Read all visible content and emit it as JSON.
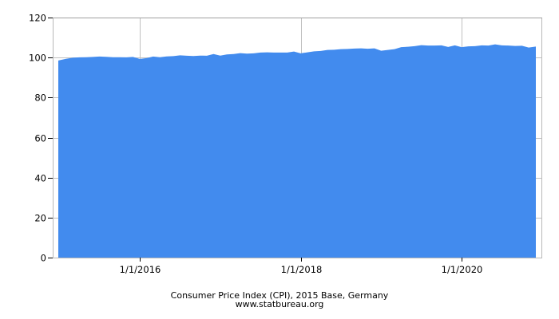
{
  "chart_data": {
    "type": "area",
    "title": "Consumer Price Index (CPI), 2015 Base, Germany",
    "subtitle": "www.statbureau.org",
    "xlabel": "",
    "ylabel": "",
    "ylim": [
      0,
      120
    ],
    "yticks": [
      0,
      20,
      40,
      60,
      80,
      100,
      120
    ],
    "xticks": [
      "1/1/2016",
      "1/1/2018",
      "1/1/2020"
    ],
    "grid": true,
    "legend": null,
    "color": "#428BEE",
    "x_start": "2015-01",
    "x_end": "2020-12",
    "frequency": "monthly",
    "series": [
      {
        "name": "CPI",
        "values": [
          98.5,
          99.4,
          99.9,
          100.1,
          100.2,
          100.3,
          100.5,
          100.4,
          100.2,
          100.2,
          100.1,
          100.3,
          99.3,
          99.7,
          100.5,
          100.2,
          100.6,
          100.7,
          101.1,
          100.9,
          100.8,
          101.0,
          100.9,
          101.8,
          101.0,
          101.6,
          101.8,
          102.2,
          102.0,
          102.1,
          102.5,
          102.6,
          102.5,
          102.5,
          102.5,
          103.0,
          102.1,
          102.6,
          103.1,
          103.3,
          103.8,
          103.9,
          104.2,
          104.3,
          104.5,
          104.6,
          104.4,
          104.6,
          103.4,
          103.8,
          104.2,
          105.2,
          105.4,
          105.7,
          106.2,
          106.0,
          106.0,
          106.1,
          105.3,
          106.1,
          105.2,
          105.6,
          105.7,
          106.1,
          106.0,
          106.6,
          106.1,
          106.0,
          105.8,
          105.9,
          105.0,
          105.5
        ]
      }
    ]
  },
  "axes": {
    "y_labels": [
      "0",
      "20",
      "40",
      "60",
      "80",
      "100",
      "120"
    ],
    "x_labels": [
      "1/1/2016",
      "1/1/2018",
      "1/1/2020"
    ]
  },
  "caption": {
    "title": "Consumer Price Index (CPI), 2015 Base, Germany",
    "source": "www.statbureau.org"
  }
}
